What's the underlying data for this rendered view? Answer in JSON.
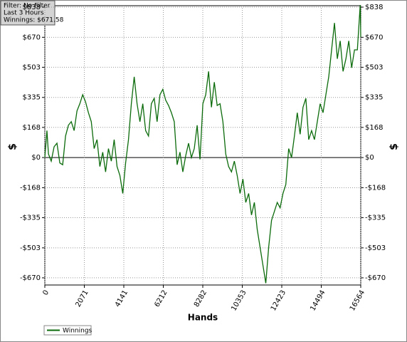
{
  "chart_data": {
    "type": "line",
    "annotations": [
      "Filter: No Filter",
      "Last  3 Hours",
      "Winnings: $671.58"
    ],
    "xlabel": "Hands",
    "ylabel": "$",
    "xlim": [
      0,
      16564
    ],
    "ylim": [
      -710,
      846
    ],
    "xticks": [
      0,
      2071,
      4141,
      6212,
      8282,
      10353,
      12423,
      14494,
      16564
    ],
    "yticks": [
      {
        "value": -670,
        "label": "-$670"
      },
      {
        "value": -503,
        "label": "-$503"
      },
      {
        "value": -335,
        "label": "-$335"
      },
      {
        "value": -168,
        "label": "-$168"
      },
      {
        "value": 0,
        "label": "$0"
      },
      {
        "value": 168,
        "label": "$168"
      },
      {
        "value": 335,
        "label": "$335"
      },
      {
        "value": 503,
        "label": "$503"
      },
      {
        "value": 670,
        "label": "$670"
      },
      {
        "value": 838,
        "label": "$838"
      }
    ],
    "grid": true,
    "legend": "bottom-left",
    "x": [
      0,
      110,
      190,
      336,
      486,
      636,
      786,
      936,
      1086,
      1236,
      1386,
      1536,
      1686,
      1836,
      1986,
      2136,
      2286,
      2436,
      2586,
      2736,
      2886,
      3036,
      3186,
      3336,
      3486,
      3636,
      3786,
      3936,
      4086,
      4236,
      4386,
      4536,
      4686,
      4836,
      4986,
      5136,
      5286,
      5436,
      5586,
      5736,
      5886,
      6036,
      6186,
      6336,
      6486,
      6636,
      6786,
      6936,
      7086,
      7236,
      7386,
      7536,
      7686,
      7836,
      7986,
      8136,
      8286,
      8436,
      8586,
      8736,
      8886,
      9036,
      9186,
      9336,
      9486,
      9636,
      9786,
      9936,
      10086,
      10236,
      10386,
      10536,
      10686,
      10836,
      10986,
      11136,
      11286,
      11436,
      11586,
      11736,
      11886,
      12036,
      12186,
      12336,
      12486,
      12636,
      12786,
      12936,
      13086,
      13236,
      13386,
      13536,
      13686,
      13836,
      13986,
      14136,
      14286,
      14436,
      14586,
      14736,
      14886,
      15036,
      15186,
      15336,
      15486,
      15636,
      15786,
      15936,
      16086,
      16236,
      16386,
      16536,
      16564
    ],
    "series": [
      {
        "name": "Winnings",
        "color": "#0b6b0b",
        "values": [
          0,
          150,
          20,
          -20,
          60,
          80,
          -30,
          -40,
          120,
          180,
          200,
          150,
          260,
          300,
          350,
          310,
          250,
          200,
          50,
          100,
          -50,
          30,
          -80,
          50,
          -20,
          100,
          -50,
          -100,
          -200,
          -30,
          100,
          300,
          450,
          300,
          200,
          300,
          150,
          120,
          300,
          330,
          200,
          350,
          380,
          320,
          290,
          250,
          200,
          -40,
          30,
          -80,
          10,
          80,
          0,
          50,
          180,
          -10,
          300,
          350,
          480,
          280,
          420,
          290,
          300,
          200,
          20,
          -50,
          -80,
          -20,
          -100,
          -200,
          -120,
          -250,
          -200,
          -320,
          -250,
          -400,
          -500,
          -600,
          -700,
          -500,
          -350,
          -300,
          -250,
          -280,
          -200,
          -150,
          50,
          0,
          120,
          250,
          130,
          280,
          330,
          100,
          150,
          100,
          200,
          300,
          250,
          350,
          450,
          600,
          750,
          550,
          650,
          480,
          550,
          650,
          500,
          600,
          600,
          850,
          671.58
        ]
      }
    ]
  }
}
